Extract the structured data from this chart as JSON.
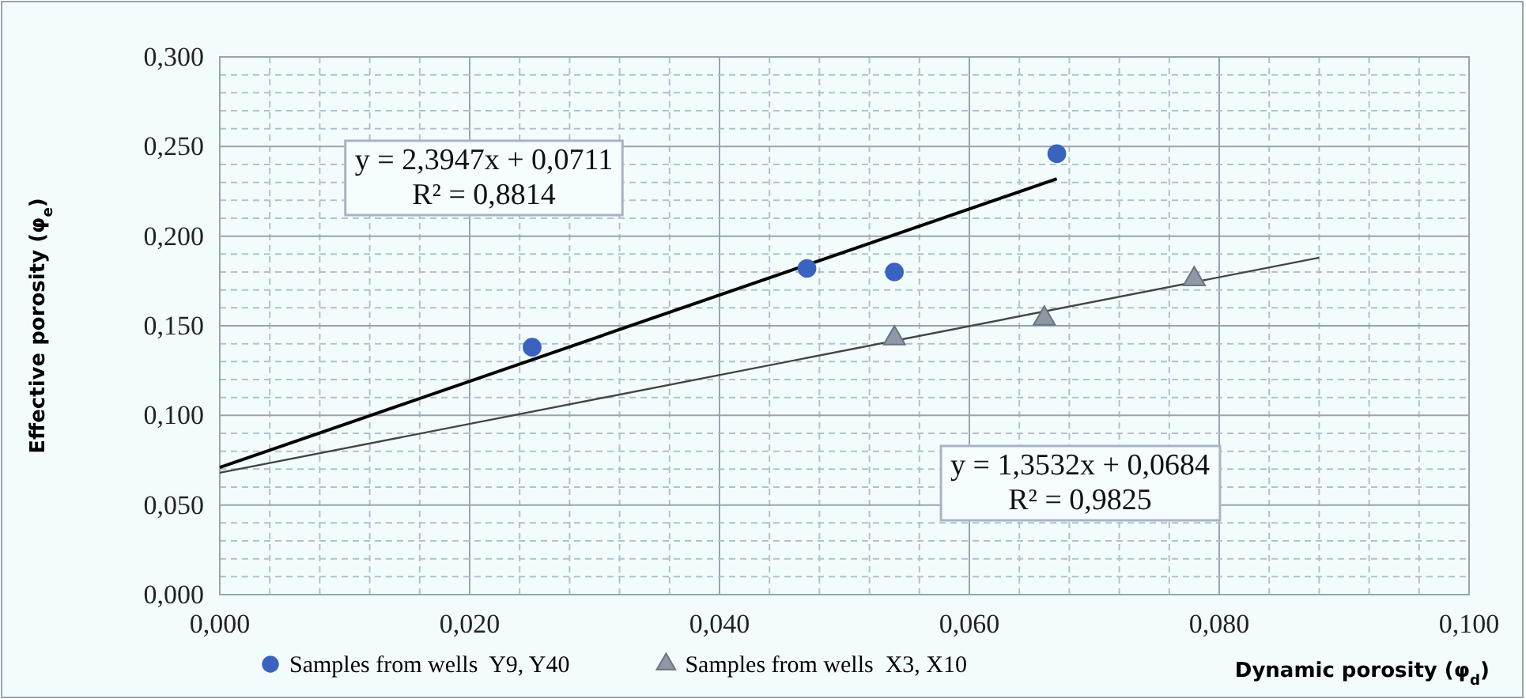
{
  "chart_data": {
    "type": "scatter",
    "xlabel": "Dynamic porosity (φ$_{d}$)",
    "ylabel": "Effective porosity (φ$_{e}$)",
    "xlim": [
      0,
      0.1
    ],
    "ylim": [
      0,
      0.3
    ],
    "xticks": [
      {
        "value": 0,
        "label": "0,000"
      },
      {
        "value": 0.004,
        "label": null
      },
      {
        "value": 0.008,
        "label": null
      },
      {
        "value": 0.012,
        "label": null
      },
      {
        "value": 0.016,
        "label": null
      },
      {
        "value": 0.02,
        "label": "0,020"
      },
      {
        "value": 0.024,
        "label": null
      },
      {
        "value": 0.028,
        "label": null
      },
      {
        "value": 0.032,
        "label": null
      },
      {
        "value": 0.036,
        "label": null
      },
      {
        "value": 0.04,
        "label": "0,040"
      },
      {
        "value": 0.044,
        "label": null
      },
      {
        "value": 0.048,
        "label": null
      },
      {
        "value": 0.052,
        "label": null
      },
      {
        "value": 0.056,
        "label": null
      },
      {
        "value": 0.06,
        "label": "0,060"
      },
      {
        "value": 0.064,
        "label": null
      },
      {
        "value": 0.068,
        "label": null
      },
      {
        "value": 0.072,
        "label": null
      },
      {
        "value": 0.076,
        "label": null
      },
      {
        "value": 0.08,
        "label": "0,080"
      },
      {
        "value": 0.084,
        "label": null
      },
      {
        "value": 0.088,
        "label": null
      },
      {
        "value": 0.092,
        "label": null
      },
      {
        "value": 0.096,
        "label": null
      },
      {
        "value": 0.1,
        "label": "0,100"
      }
    ],
    "yticks": [
      {
        "value": 0,
        "label": "0,000"
      },
      {
        "value": 0.01,
        "label": null
      },
      {
        "value": 0.02,
        "label": null
      },
      {
        "value": 0.03,
        "label": null
      },
      {
        "value": 0.04,
        "label": null
      },
      {
        "value": 0.05,
        "label": "0,050"
      },
      {
        "value": 0.06,
        "label": null
      },
      {
        "value": 0.07,
        "label": null
      },
      {
        "value": 0.08,
        "label": null
      },
      {
        "value": 0.09,
        "label": null
      },
      {
        "value": 0.1,
        "label": "0,100"
      },
      {
        "value": 0.11,
        "label": null
      },
      {
        "value": 0.12,
        "label": null
      },
      {
        "value": 0.13,
        "label": null
      },
      {
        "value": 0.14,
        "label": null
      },
      {
        "value": 0.15,
        "label": "0,150"
      },
      {
        "value": 0.16,
        "label": null
      },
      {
        "value": 0.17,
        "label": null
      },
      {
        "value": 0.18,
        "label": null
      },
      {
        "value": 0.19,
        "label": null
      },
      {
        "value": 0.2,
        "label": "0,200"
      },
      {
        "value": 0.21,
        "label": null
      },
      {
        "value": 0.22,
        "label": null
      },
      {
        "value": 0.23,
        "label": null
      },
      {
        "value": 0.24,
        "label": null
      },
      {
        "value": 0.25,
        "label": "0,250"
      },
      {
        "value": 0.26,
        "label": null
      },
      {
        "value": 0.27,
        "label": null
      },
      {
        "value": 0.28,
        "label": null
      },
      {
        "value": 0.29,
        "label": null
      },
      {
        "value": 0.3,
        "label": "0,300"
      }
    ],
    "grid": true,
    "legend": "bottom",
    "series": [
      {
        "name": "Samples from wells  Y9, Y40",
        "marker": "circle",
        "color": "#3a63c0",
        "x": [
          0.025,
          0.047,
          0.054,
          0.067
        ],
        "values": [
          0.138,
          0.182,
          0.18,
          0.246
        ]
      },
      {
        "name": "Samples from wells  X3, X10",
        "marker": "triangle",
        "color": "#8e98a6",
        "x": [
          0.054,
          0.066,
          0.078
        ],
        "values": [
          0.143,
          0.154,
          0.176
        ]
      },
      {
        "type": "line",
        "color": "#000000",
        "x": [
          0,
          0.067
        ],
        "values": [
          0.071,
          0.232
        ]
      },
      {
        "type": "line",
        "color": "#444444",
        "x": [
          0,
          0.088
        ],
        "values": [
          0.068,
          0.188
        ]
      }
    ],
    "annotations": [
      "y = 2,3947x + 0,0711\nR² = 0,8814",
      "y = 1,3532x + 0,0684\nR² = 0,9825"
    ]
  }
}
